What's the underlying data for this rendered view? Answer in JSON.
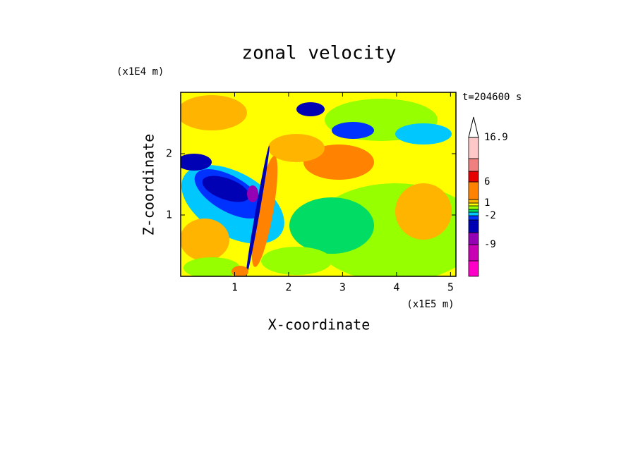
{
  "chart_data": {
    "type": "contour",
    "title": "zonal velocity",
    "time_label": "t=204600 s",
    "x_label": "X-coordinate",
    "x_unit": "(x1E5 m)",
    "y_label": "Z-coordinate",
    "y_unit": "(x1E4 m)",
    "xlim": [
      0,
      5.1
    ],
    "xticks": [
      1,
      2,
      3,
      4,
      5
    ],
    "ylim": [
      0,
      3
    ],
    "yticks": [
      1,
      2
    ],
    "colorbar": {
      "colors": [
        "#ff00c8",
        "#c800b4",
        "#9600b4",
        "#0000b4",
        "#0032ff",
        "#00c8ff",
        "#00dc64",
        "#96ff00",
        "#ffff00",
        "#ffb400",
        "#ff8200",
        "#e60000",
        "#f08080",
        "#ffc8c8"
      ],
      "ticks": [
        16.9,
        6,
        1,
        -2,
        -9
      ]
    }
  }
}
